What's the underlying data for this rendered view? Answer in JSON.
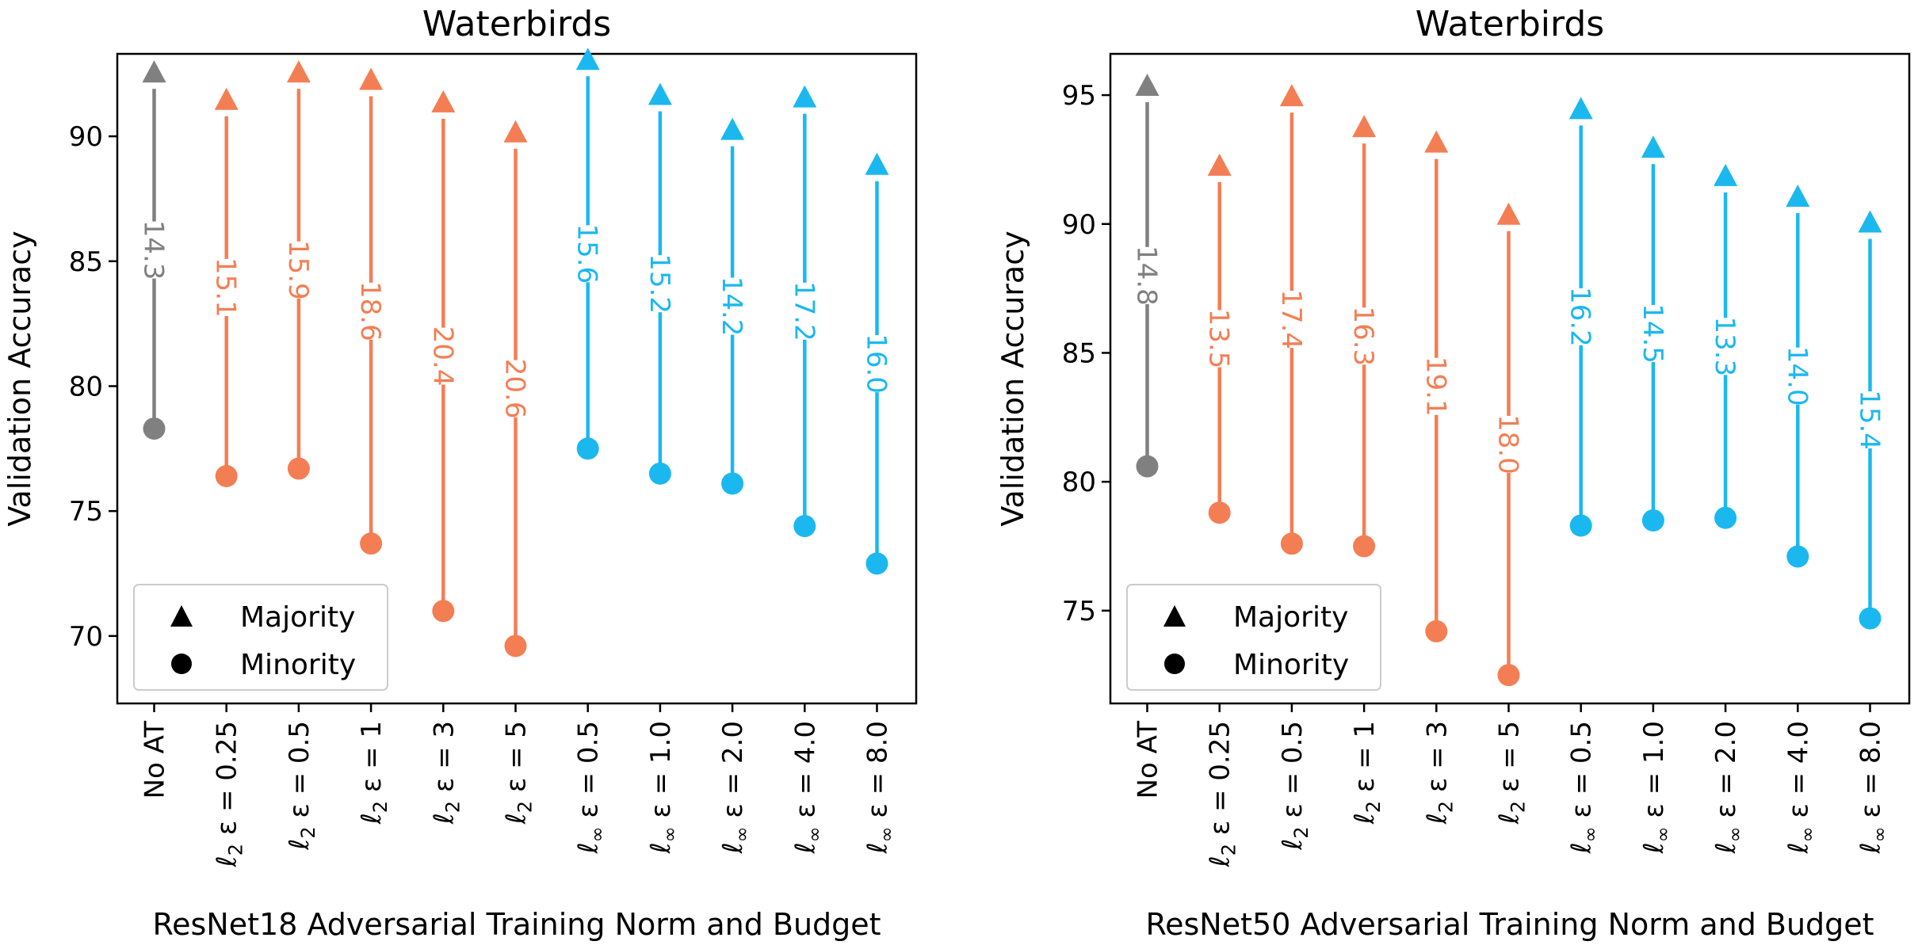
{
  "chart_data": [
    {
      "type": "arrow-range",
      "title": "Waterbirds",
      "xlabel": "ResNet18 Adversarial Training Norm and Budget",
      "ylabel": "Validation Accuracy",
      "ylim": [
        67.3,
        93.3
      ],
      "yticks": [
        70,
        75,
        80,
        85,
        90
      ],
      "legend": {
        "position": "lower-left",
        "entries": [
          {
            "marker": "triangle",
            "label": "Majority"
          },
          {
            "marker": "circle",
            "label": "Minority"
          }
        ]
      },
      "points": [
        {
          "category": "No AT",
          "norm": "none",
          "minority": 78.3,
          "majority": 92.6,
          "gap": "14.3",
          "color": "#808080"
        },
        {
          "category": "ε = 0.25",
          "norm": "ℓ2",
          "minority": 76.4,
          "majority": 91.5,
          "gap": "15.1",
          "color": "#F47E54"
        },
        {
          "category": "ε = 0.5",
          "norm": "ℓ2",
          "minority": 76.7,
          "majority": 92.6,
          "gap": "15.9",
          "color": "#F47E54"
        },
        {
          "category": "ε = 1",
          "norm": "ℓ2",
          "minority": 73.7,
          "majority": 92.3,
          "gap": "18.6",
          "color": "#F47E54"
        },
        {
          "category": "ε = 3",
          "norm": "ℓ2",
          "minority": 71.0,
          "majority": 91.4,
          "gap": "20.4",
          "color": "#F47E54"
        },
        {
          "category": "ε = 5",
          "norm": "ℓ2",
          "minority": 69.6,
          "majority": 90.2,
          "gap": "20.6",
          "color": "#F47E54"
        },
        {
          "category": "ε = 0.5",
          "norm": "ℓ∞",
          "minority": 77.5,
          "majority": 93.1,
          "gap": "15.6",
          "color": "#1BB8F0"
        },
        {
          "category": "ε = 1.0",
          "norm": "ℓ∞",
          "minority": 76.5,
          "majority": 91.7,
          "gap": "15.2",
          "color": "#1BB8F0"
        },
        {
          "category": "ε = 2.0",
          "norm": "ℓ∞",
          "minority": 76.1,
          "majority": 90.3,
          "gap": "14.2",
          "color": "#1BB8F0"
        },
        {
          "category": "ε = 4.0",
          "norm": "ℓ∞",
          "minority": 74.4,
          "majority": 91.6,
          "gap": "17.2",
          "color": "#1BB8F0"
        },
        {
          "category": "ε = 8.0",
          "norm": "ℓ∞",
          "minority": 72.9,
          "majority": 88.9,
          "gap": "16.0",
          "color": "#1BB8F0"
        }
      ]
    },
    {
      "type": "arrow-range",
      "title": "Waterbirds",
      "xlabel": "ResNet50 Adversarial Training Norm and Budget",
      "ylabel": "Validation Accuracy",
      "ylim": [
        71.4,
        96.6
      ],
      "yticks": [
        75,
        80,
        85,
        90,
        95
      ],
      "legend": {
        "position": "lower-left",
        "entries": [
          {
            "marker": "triangle",
            "label": "Majority"
          },
          {
            "marker": "circle",
            "label": "Minority"
          }
        ]
      },
      "points": [
        {
          "category": "No AT",
          "norm": "none",
          "minority": 80.6,
          "majority": 95.4,
          "gap": "14.8",
          "color": "#808080"
        },
        {
          "category": "ε = 0.25",
          "norm": "ℓ2",
          "minority": 78.8,
          "majority": 92.3,
          "gap": "13.5",
          "color": "#F47E54"
        },
        {
          "category": "ε = 0.5",
          "norm": "ℓ2",
          "minority": 77.6,
          "majority": 95.0,
          "gap": "17.4",
          "color": "#F47E54"
        },
        {
          "category": "ε = 1",
          "norm": "ℓ2",
          "minority": 77.5,
          "majority": 93.8,
          "gap": "16.3",
          "color": "#F47E54"
        },
        {
          "category": "ε = 3",
          "norm": "ℓ2",
          "minority": 74.2,
          "majority": 93.2,
          "gap": "19.1",
          "color": "#F47E54"
        },
        {
          "category": "ε = 5",
          "norm": "ℓ2",
          "minority": 72.5,
          "majority": 90.4,
          "gap": "18.0",
          "color": "#F47E54"
        },
        {
          "category": "ε = 0.5",
          "norm": "ℓ∞",
          "minority": 78.3,
          "majority": 94.5,
          "gap": "16.2",
          "color": "#1BB8F0"
        },
        {
          "category": "ε = 1.0",
          "norm": "ℓ∞",
          "minority": 78.5,
          "majority": 93.0,
          "gap": "14.5",
          "color": "#1BB8F0"
        },
        {
          "category": "ε = 2.0",
          "norm": "ℓ∞",
          "minority": 78.6,
          "majority": 91.9,
          "gap": "13.3",
          "color": "#1BB8F0"
        },
        {
          "category": "ε = 4.0",
          "norm": "ℓ∞",
          "minority": 77.1,
          "majority": 91.1,
          "gap": "14.0",
          "color": "#1BB8F0"
        },
        {
          "category": "ε = 8.0",
          "norm": "ℓ∞",
          "minority": 74.7,
          "majority": 90.1,
          "gap": "15.4",
          "color": "#1BB8F0"
        }
      ]
    }
  ]
}
